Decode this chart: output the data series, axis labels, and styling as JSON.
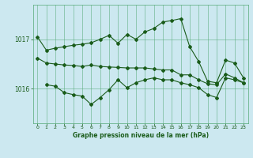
{
  "title": "Graphe pression niveau de la mer (hPa)",
  "background_color": "#cce8f0",
  "grid_color": "#55aa77",
  "line_color": "#1a5c1a",
  "xlim": [
    -0.5,
    23.5
  ],
  "ylim": [
    1015.3,
    1017.7
  ],
  "yticks": [
    1016,
    1017
  ],
  "xticks": [
    0,
    1,
    2,
    3,
    4,
    5,
    6,
    7,
    8,
    9,
    10,
    11,
    12,
    13,
    14,
    15,
    16,
    17,
    18,
    19,
    20,
    21,
    22,
    23
  ],
  "series1_x": [
    0,
    1,
    2,
    3,
    4,
    5,
    6,
    7,
    8,
    9,
    10,
    11,
    12,
    13,
    14,
    15,
    16,
    17,
    18,
    19,
    20,
    21,
    22,
    23
  ],
  "series1_y": [
    1017.05,
    1016.78,
    1016.82,
    1016.85,
    1016.88,
    1016.9,
    1016.93,
    1017.0,
    1017.08,
    1016.92,
    1017.1,
    1017.0,
    1017.15,
    1017.22,
    1017.35,
    1017.38,
    1017.42,
    1016.85,
    1016.55,
    1016.15,
    1016.12,
    1016.58,
    1016.52,
    1016.22
  ],
  "series2_x": [
    0,
    1,
    2,
    3,
    4,
    5,
    6,
    7,
    8,
    9,
    10,
    11,
    12,
    13,
    14,
    15,
    16,
    17,
    18,
    19,
    20,
    21,
    22,
    23
  ],
  "series2_y": [
    1016.62,
    1016.52,
    1016.5,
    1016.48,
    1016.47,
    1016.45,
    1016.48,
    1016.45,
    1016.44,
    1016.43,
    1016.42,
    1016.42,
    1016.42,
    1016.4,
    1016.38,
    1016.38,
    1016.28,
    1016.28,
    1016.18,
    1016.1,
    1016.08,
    1016.3,
    1016.22,
    1016.12
  ],
  "series3_x": [
    1,
    2,
    3,
    4,
    5,
    6,
    7,
    8,
    9,
    10,
    11,
    12,
    13,
    14,
    15,
    16,
    17,
    18,
    19,
    20,
    21,
    22,
    23
  ],
  "series3_y": [
    1016.08,
    1016.05,
    1015.92,
    1015.88,
    1015.85,
    1015.68,
    1015.82,
    1015.98,
    1016.18,
    1016.02,
    1016.12,
    1016.18,
    1016.22,
    1016.18,
    1016.18,
    1016.12,
    1016.08,
    1016.02,
    1015.88,
    1015.82,
    1016.22,
    1016.18,
    1016.12
  ]
}
